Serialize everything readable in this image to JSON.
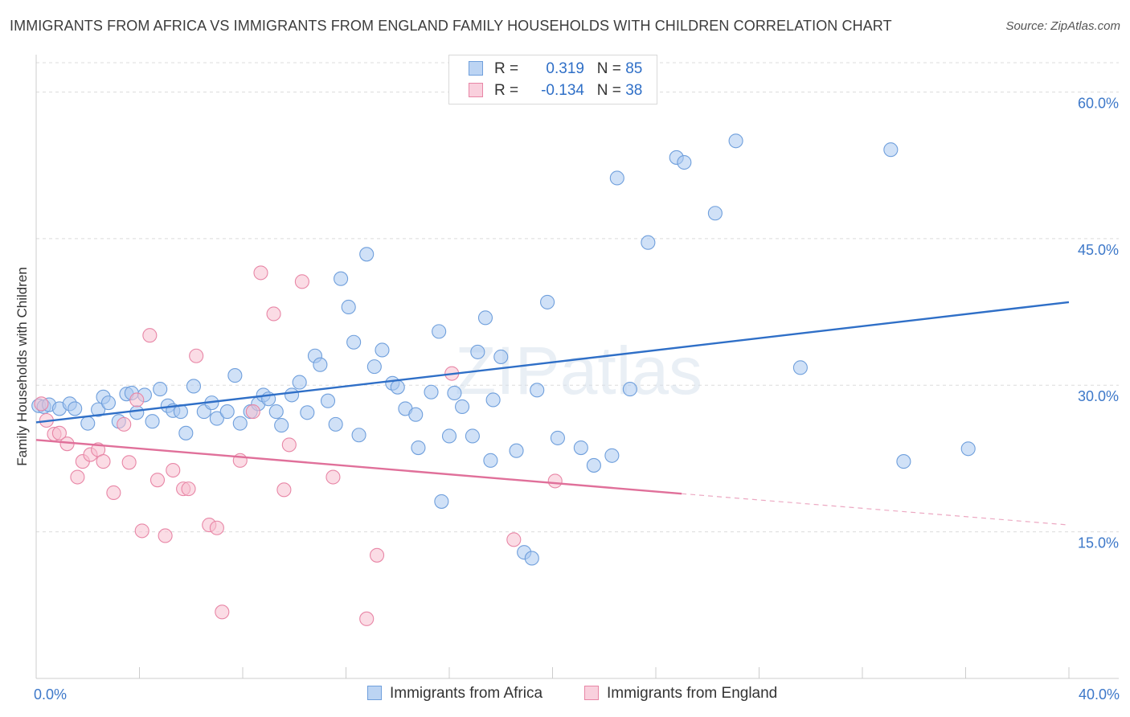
{
  "title": "IMMIGRANTS FROM AFRICA VS IMMIGRANTS FROM ENGLAND FAMILY HOUSEHOLDS WITH CHILDREN CORRELATION CHART",
  "source": "Source: ZipAtlas.com",
  "watermark": "ZIPatlas",
  "legend": {
    "r_label": "R =",
    "n_label": "N =",
    "rows": [
      {
        "r": "0.319",
        "n": "85",
        "color": "#a9c8f0",
        "border": "#6f9fdc"
      },
      {
        "r": "-0.134",
        "n": "38",
        "color": "#f7bfd0",
        "border": "#e886a6"
      }
    ]
  },
  "bottom_legend": [
    "Immigrants from Africa",
    "Immigrants from England"
  ],
  "chart_data": {
    "type": "scatter",
    "title": "IMMIGRANTS FROM AFRICA VS IMMIGRANTS FROM ENGLAND FAMILY HOUSEHOLDS WITH CHILDREN CORRELATION CHART",
    "xlabel": "",
    "ylabel": "Family Households with Children",
    "xlim": [
      0,
      40
    ],
    "ylim": [
      0,
      63
    ],
    "x_tick_labels": [
      "0.0%",
      "40.0%"
    ],
    "y_ticks": [
      15,
      30,
      45,
      60
    ],
    "y_tick_labels": [
      "15.0%",
      "30.0%",
      "45.0%",
      "60.0%"
    ],
    "grid": true,
    "legend_position": "top-center",
    "series": [
      {
        "name": "Immigrants from Africa",
        "color": "#a9c8f0",
        "edge": "#6f9fdc",
        "line_color": "#2f6fc7",
        "trend": [
          [
            0,
            26.2
          ],
          [
            40,
            38.5
          ]
        ],
        "points": [
          [
            0.1,
            27.9
          ],
          [
            0.3,
            27.8
          ],
          [
            0.5,
            28.0
          ],
          [
            0.9,
            27.6
          ],
          [
            1.3,
            28.1
          ],
          [
            1.5,
            27.6
          ],
          [
            2.0,
            26.1
          ],
          [
            2.4,
            27.5
          ],
          [
            2.6,
            28.8
          ],
          [
            2.8,
            28.2
          ],
          [
            3.2,
            26.3
          ],
          [
            3.5,
            29.1
          ],
          [
            3.7,
            29.2
          ],
          [
            3.9,
            27.2
          ],
          [
            4.2,
            29.0
          ],
          [
            4.5,
            26.3
          ],
          [
            4.8,
            29.6
          ],
          [
            5.1,
            27.9
          ],
          [
            5.3,
            27.4
          ],
          [
            5.6,
            27.3
          ],
          [
            5.8,
            25.1
          ],
          [
            6.1,
            29.9
          ],
          [
            6.5,
            27.3
          ],
          [
            6.8,
            28.2
          ],
          [
            7.0,
            26.6
          ],
          [
            7.4,
            27.3
          ],
          [
            7.7,
            31.0
          ],
          [
            7.9,
            26.1
          ],
          [
            8.3,
            27.3
          ],
          [
            8.6,
            28.1
          ],
          [
            8.8,
            29.0
          ],
          [
            9.0,
            28.6
          ],
          [
            9.3,
            27.3
          ],
          [
            9.5,
            25.9
          ],
          [
            9.9,
            29.0
          ],
          [
            10.2,
            30.3
          ],
          [
            10.5,
            27.2
          ],
          [
            10.8,
            33.0
          ],
          [
            11.0,
            32.1
          ],
          [
            11.3,
            28.4
          ],
          [
            11.6,
            26.0
          ],
          [
            11.8,
            40.9
          ],
          [
            12.1,
            38.0
          ],
          [
            12.3,
            34.4
          ],
          [
            12.5,
            24.9
          ],
          [
            12.8,
            43.4
          ],
          [
            13.1,
            31.9
          ],
          [
            13.4,
            33.6
          ],
          [
            13.8,
            30.2
          ],
          [
            14.0,
            29.8
          ],
          [
            14.3,
            27.6
          ],
          [
            14.7,
            27.0
          ],
          [
            14.8,
            23.6
          ],
          [
            15.3,
            29.3
          ],
          [
            15.6,
            35.5
          ],
          [
            15.7,
            18.1
          ],
          [
            16.0,
            24.8
          ],
          [
            16.2,
            29.2
          ],
          [
            16.5,
            27.8
          ],
          [
            16.9,
            24.8
          ],
          [
            17.1,
            33.4
          ],
          [
            17.4,
            36.9
          ],
          [
            17.6,
            22.3
          ],
          [
            17.7,
            28.5
          ],
          [
            18.0,
            32.9
          ],
          [
            18.6,
            23.3
          ],
          [
            18.9,
            12.9
          ],
          [
            19.2,
            12.3
          ],
          [
            19.4,
            29.5
          ],
          [
            19.8,
            38.5
          ],
          [
            20.2,
            24.6
          ],
          [
            21.1,
            23.6
          ],
          [
            21.6,
            21.8
          ],
          [
            22.3,
            22.8
          ],
          [
            22.5,
            51.2
          ],
          [
            23.0,
            29.6
          ],
          [
            24.8,
            53.3
          ],
          [
            25.1,
            52.8
          ],
          [
            26.3,
            47.6
          ],
          [
            27.1,
            55.0
          ],
          [
            23.7,
            44.6
          ],
          [
            29.6,
            31.8
          ],
          [
            33.1,
            54.1
          ],
          [
            33.6,
            22.2
          ],
          [
            36.1,
            23.5
          ]
        ]
      },
      {
        "name": "Immigrants from England",
        "color": "#f7bfd0",
        "edge": "#e886a6",
        "line_color": "#e0709a",
        "trend": [
          [
            0,
            24.4
          ],
          [
            25,
            18.9
          ]
        ],
        "trend_dashed": [
          [
            25,
            18.9
          ],
          [
            40,
            15.7
          ]
        ],
        "points": [
          [
            0.2,
            28.1
          ],
          [
            0.4,
            26.4
          ],
          [
            0.7,
            25.0
          ],
          [
            0.9,
            25.1
          ],
          [
            1.2,
            24.0
          ],
          [
            1.6,
            20.6
          ],
          [
            1.8,
            22.2
          ],
          [
            2.1,
            22.9
          ],
          [
            2.4,
            23.4
          ],
          [
            2.6,
            22.2
          ],
          [
            3.0,
            19.0
          ],
          [
            3.4,
            26.0
          ],
          [
            3.6,
            22.1
          ],
          [
            3.9,
            28.5
          ],
          [
            4.1,
            15.1
          ],
          [
            4.4,
            35.1
          ],
          [
            4.7,
            20.3
          ],
          [
            5.0,
            14.6
          ],
          [
            5.3,
            21.3
          ],
          [
            5.7,
            19.4
          ],
          [
            5.9,
            19.4
          ],
          [
            6.2,
            33.0
          ],
          [
            6.7,
            15.7
          ],
          [
            7.0,
            15.4
          ],
          [
            7.2,
            6.8
          ],
          [
            7.9,
            22.3
          ],
          [
            8.4,
            27.3
          ],
          [
            8.7,
            41.5
          ],
          [
            9.2,
            37.3
          ],
          [
            9.6,
            19.3
          ],
          [
            9.8,
            23.9
          ],
          [
            10.3,
            40.6
          ],
          [
            11.5,
            20.6
          ],
          [
            12.8,
            6.1
          ],
          [
            13.2,
            12.6
          ],
          [
            16.1,
            31.2
          ],
          [
            18.5,
            14.2
          ],
          [
            20.1,
            20.2
          ]
        ]
      }
    ]
  }
}
